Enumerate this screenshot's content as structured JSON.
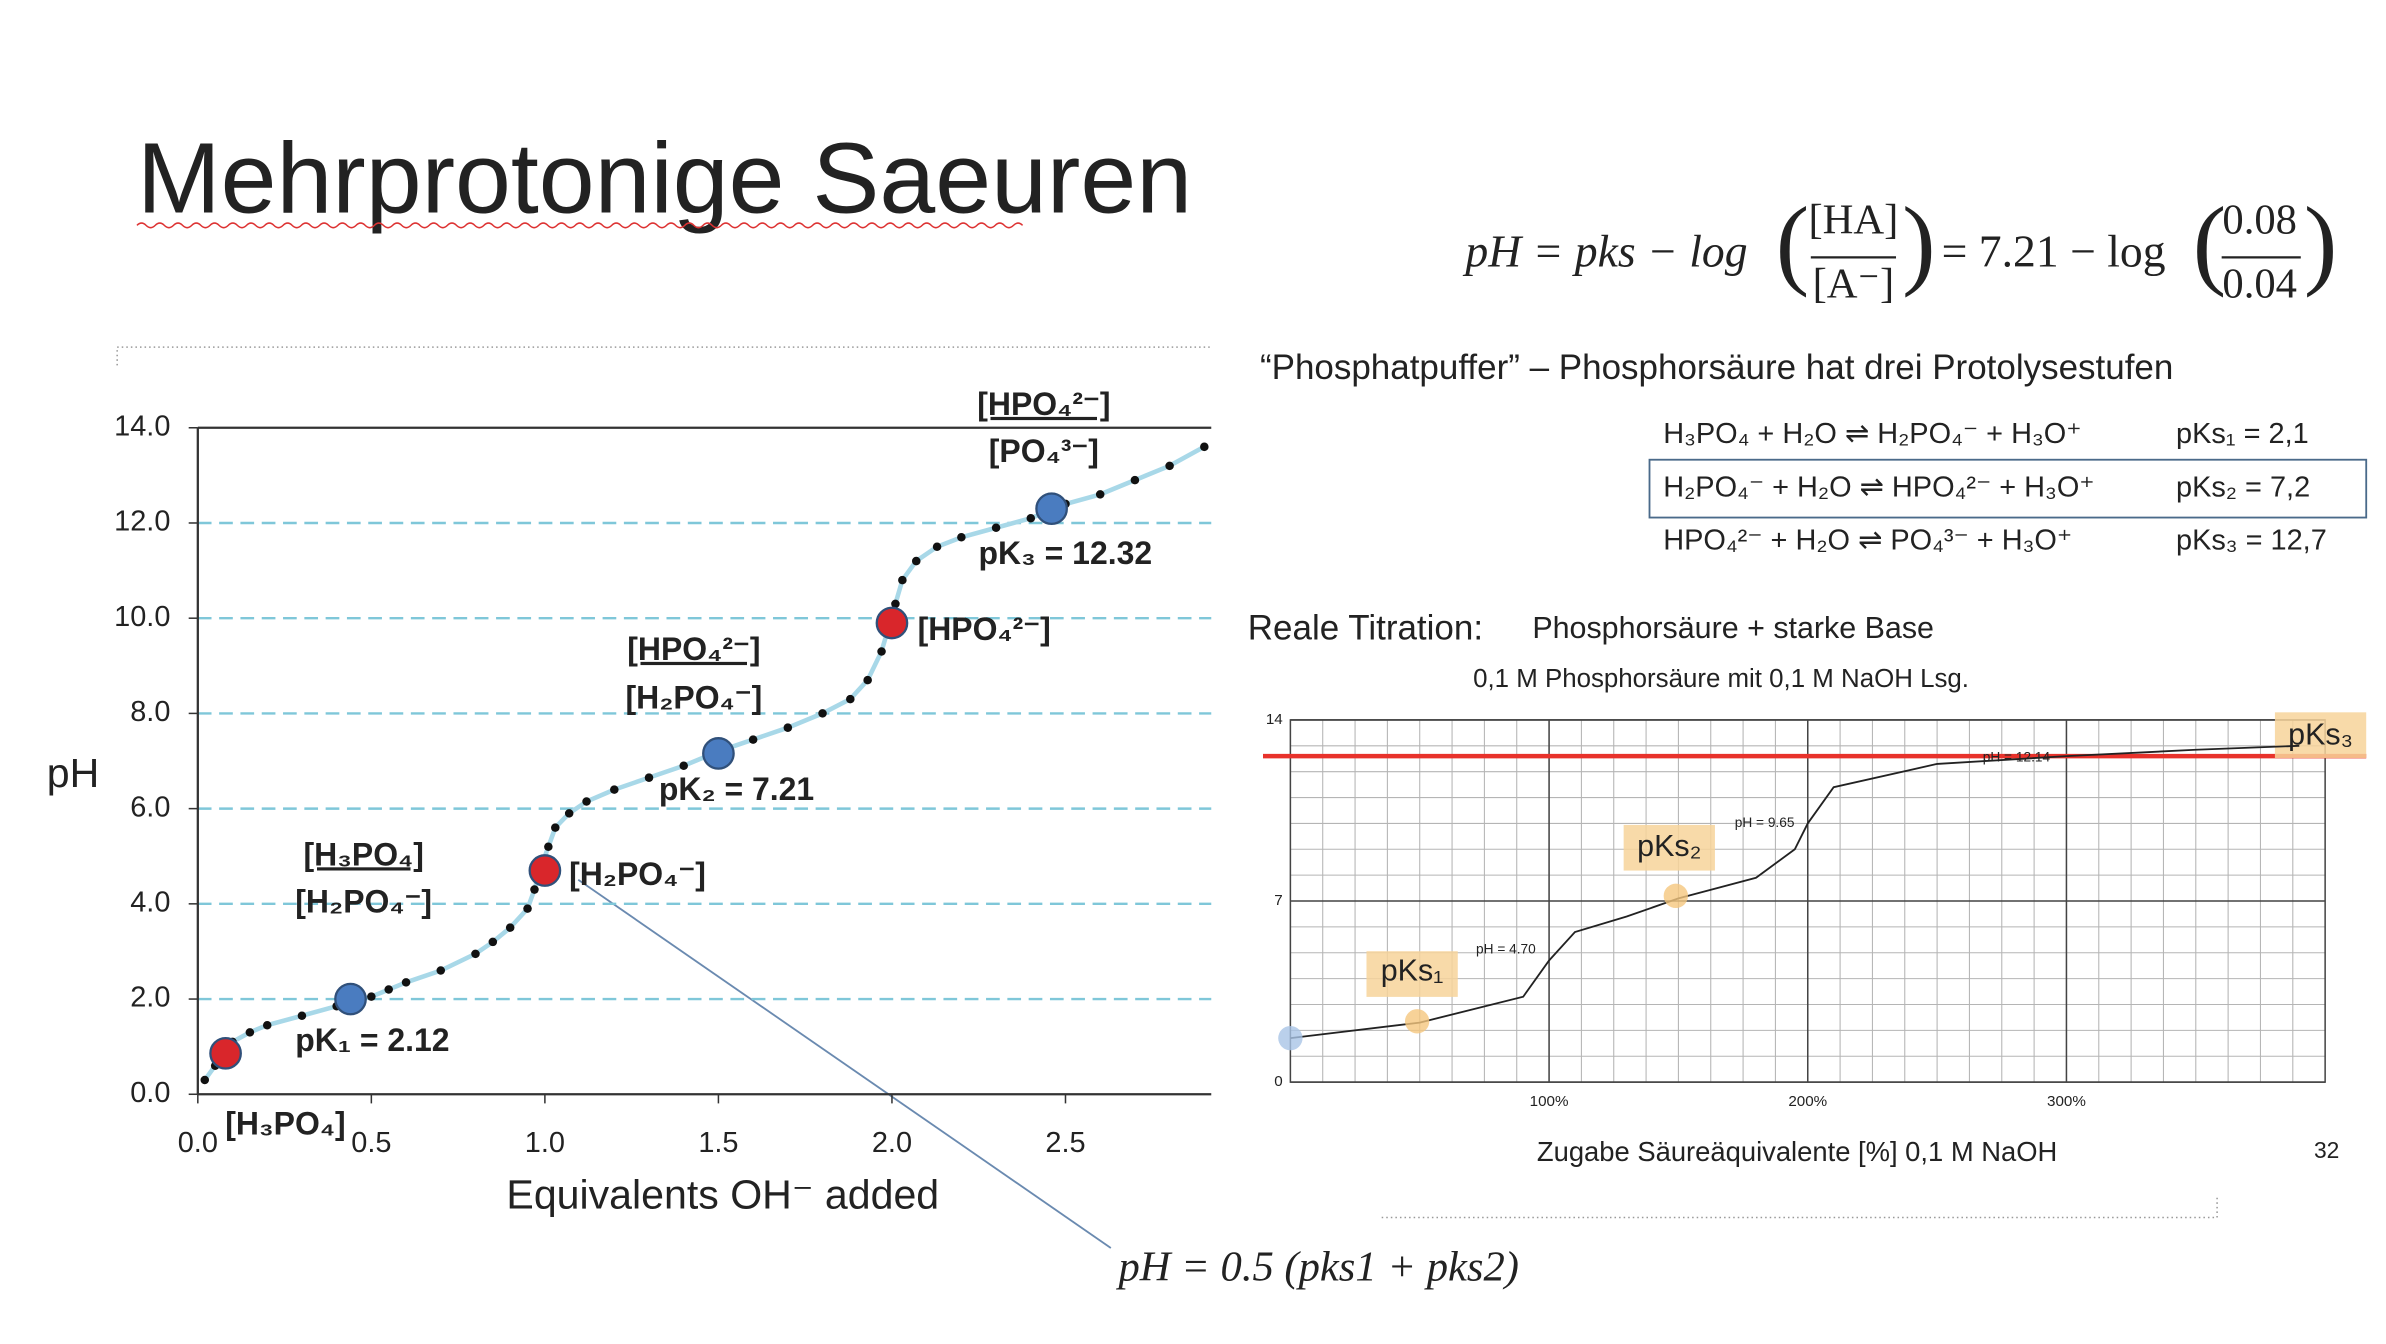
{
  "slide": {
    "title": "Mehrprotonige Saeuren",
    "page_number": "32",
    "formula": {
      "lhs": "pH = pks − log",
      "num1": "[HA]",
      "den1": "[A⁻]",
      "mid": "= 7.21 − log",
      "num2": "0.08",
      "den2": "0.04"
    },
    "subheading": "“Phosphatpuffer” – Phosphorsäure hat drei Protolysestufen",
    "equations": [
      [
        "H₃PO₄ + H₂O ⇌ H₂PO₄⁻ + H₃O⁺",
        "pKs₁ = 2,1"
      ],
      [
        "H₂PO₄⁻ + H₂O ⇌ HPO₄²⁻ + H₃O⁺",
        "pKs₂ = 7,2"
      ],
      [
        "HPO₄²⁻ + H₂O ⇌ PO₄³⁻ + H₃O⁺",
        "pKs₃ = 12,7"
      ]
    ],
    "midpoint_formula": "pH = 0.5 (pks1 + pks2)"
  },
  "chart_data": [
    {
      "type": "line",
      "x_label": "Equivalents OH⁻ added",
      "y_label": "pH",
      "xlim": [
        0,
        2.92
      ],
      "ylim": [
        0,
        14
      ],
      "xticks": [
        {
          "value": 0,
          "label": "0.0"
        },
        {
          "value": 0.5,
          "label": "0.5"
        },
        {
          "value": 1,
          "label": "1.0"
        },
        {
          "value": 1.5,
          "label": "1.5"
        },
        {
          "value": 2,
          "label": "2.0"
        },
        {
          "value": 2.5,
          "label": "2.5"
        }
      ],
      "yticks": [
        {
          "value": 0,
          "label": "0.0"
        },
        {
          "value": 2,
          "label": "2.0"
        },
        {
          "value": 4,
          "label": "4.0"
        },
        {
          "value": 6,
          "label": "6.0"
        },
        {
          "value": 8,
          "label": "8.0"
        },
        {
          "value": 10,
          "label": "10.0"
        },
        {
          "value": 12,
          "label": "12.0"
        },
        {
          "value": 14,
          "label": "14.0"
        }
      ],
      "grid": true,
      "series": [
        {
          "style": "dots",
          "color": "#111111",
          "x": [
            0.02,
            0.05,
            0.1,
            0.15,
            0.2,
            0.3,
            0.4,
            0.5,
            0.55,
            0.6,
            0.7,
            0.8,
            0.85,
            0.9,
            0.95,
            0.97,
            0.99,
            1.01,
            1.03,
            1.07,
            1.12,
            1.2,
            1.3,
            1.4,
            1.5,
            1.6,
            1.7,
            1.8,
            1.88,
            1.93,
            1.97,
            1.99,
            2.01,
            2.03,
            2.07,
            2.13,
            2.2,
            2.3,
            2.4,
            2.5,
            2.6,
            2.7,
            2.8,
            2.9
          ],
          "values": [
            0.3,
            0.6,
            1.1,
            1.3,
            1.45,
            1.65,
            1.85,
            2.05,
            2.2,
            2.35,
            2.6,
            2.95,
            3.2,
            3.5,
            3.9,
            4.3,
            4.8,
            5.2,
            5.6,
            5.9,
            6.15,
            6.4,
            6.65,
            6.9,
            7.2,
            7.45,
            7.7,
            8.0,
            8.3,
            8.7,
            9.3,
            9.8,
            10.3,
            10.8,
            11.2,
            11.5,
            11.7,
            11.9,
            12.1,
            12.4,
            12.6,
            12.9,
            13.2,
            13.6
          ]
        },
        {
          "style": "points",
          "color": "#d9262b",
          "x": [
            0.08,
            1.0,
            2.0
          ],
          "values": [
            0.86,
            4.7,
            9.9
          ]
        },
        {
          "style": "points",
          "color": "#4a7cc0",
          "x": [
            0.44,
            1.5,
            2.46
          ],
          "values": [
            2.0,
            7.16,
            12.3
          ]
        }
      ],
      "fractions": [
        {
          "numerator": "[H₃PO₄]",
          "denominator": "[H₂PO₄⁻]"
        },
        {
          "numerator": "[HPO₄²⁻]",
          "denominator": "[H₂PO₄⁻]"
        },
        {
          "numerator": "[HPO₄²⁻]",
          "denominator": "[PO₄³⁻]"
        }
      ],
      "labels": [
        "pK₁ = 2.12",
        "pK₂ = 7.21",
        "pK₃ = 12.32",
        "[H₃PO₄]",
        "[H₂PO₄⁻]",
        "[HPO₄²⁻]"
      ]
    },
    {
      "type": "line",
      "title": "Reale Titration:",
      "title_detail": "Phosphorsäure + starke Base",
      "subtitle": "0,1 M Phosphorsäure mit 0,1 M NaOH Lsg.",
      "x_label": "Zugabe Säureäquivalente [%] 0,1 M NaOH",
      "xlim": [
        0,
        400
      ],
      "ylim": [
        0,
        14
      ],
      "xticks": [
        {
          "value": 100,
          "label": "100%"
        },
        {
          "value": 200,
          "label": "200%"
        },
        {
          "value": 300,
          "label": "300%"
        }
      ],
      "yticks": [
        0,
        7,
        14
      ],
      "grid": true,
      "minor_grid": true,
      "reference_line": {
        "value": 12.6,
        "color": "#e8322b"
      },
      "series": [
        {
          "style": "line",
          "color": "#222222",
          "x": [
            0,
            50,
            90,
            100,
            110,
            130,
            150,
            180,
            195,
            200,
            210,
            250,
            300,
            350,
            390
          ],
          "values": [
            1.7,
            2.3,
            3.3,
            4.7,
            5.8,
            6.4,
            7.1,
            7.9,
            9.0,
            10.0,
            11.4,
            12.3,
            12.6,
            12.85,
            13.0
          ]
        },
        {
          "style": "points",
          "color": "#a9c4e6",
          "x": [
            0
          ],
          "values": [
            1.7
          ]
        },
        {
          "style": "points",
          "color": "#f5c77e",
          "x": [
            49,
            149
          ],
          "values": [
            2.35,
            7.2
          ]
        }
      ],
      "labels": [
        "pH = 4.70",
        "pH = 9.65",
        "pH = 12.14",
        "pKs₁",
        "pKs₂",
        "pKs₃"
      ]
    }
  ]
}
